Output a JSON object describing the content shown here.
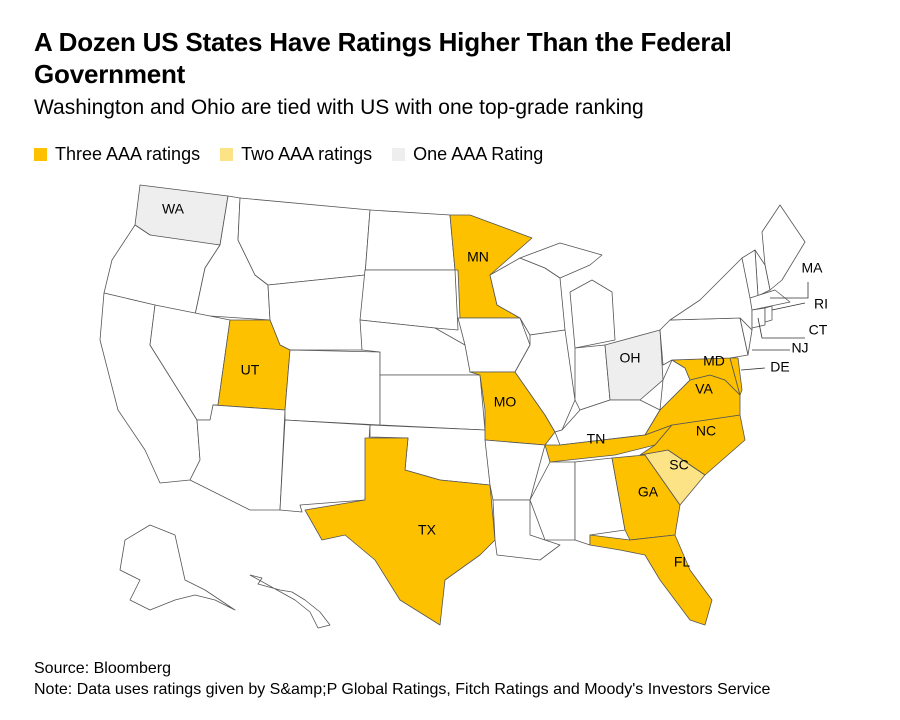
{
  "title": "A Dozen US States Have Ratings Higher Than the Federal Government",
  "subtitle": "Washington and Ohio are tied with US with one top-grade ranking",
  "legend": [
    {
      "label": "Three AAA ratings",
      "color": "#fdc100"
    },
    {
      "label": "Two AAA ratings",
      "color": "#fce486"
    },
    {
      "label": "One AAA Rating",
      "color": "#eeeeee"
    }
  ],
  "colors": {
    "none": "#ffffff",
    "three": "#fdc100",
    "two": "#fce486",
    "one": "#eeeeee"
  },
  "states": [
    {
      "code": "WA",
      "rating": "one"
    },
    {
      "code": "OR",
      "rating": "none"
    },
    {
      "code": "CA",
      "rating": "none"
    },
    {
      "code": "ID",
      "rating": "none"
    },
    {
      "code": "NV",
      "rating": "none"
    },
    {
      "code": "MT",
      "rating": "none"
    },
    {
      "code": "WY",
      "rating": "none"
    },
    {
      "code": "UT",
      "rating": "three"
    },
    {
      "code": "AZ",
      "rating": "none"
    },
    {
      "code": "CO",
      "rating": "none"
    },
    {
      "code": "NM",
      "rating": "none"
    },
    {
      "code": "ND",
      "rating": "none"
    },
    {
      "code": "SD",
      "rating": "none"
    },
    {
      "code": "NE",
      "rating": "none"
    },
    {
      "code": "KS",
      "rating": "none"
    },
    {
      "code": "OK",
      "rating": "none"
    },
    {
      "code": "TX",
      "rating": "three"
    },
    {
      "code": "MN",
      "rating": "three"
    },
    {
      "code": "IA",
      "rating": "none"
    },
    {
      "code": "MO",
      "rating": "three"
    },
    {
      "code": "AR",
      "rating": "none"
    },
    {
      "code": "LA",
      "rating": "none"
    },
    {
      "code": "WI",
      "rating": "none"
    },
    {
      "code": "IL",
      "rating": "none"
    },
    {
      "code": "MI",
      "rating": "none"
    },
    {
      "code": "IN",
      "rating": "none"
    },
    {
      "code": "OH",
      "rating": "one"
    },
    {
      "code": "KY",
      "rating": "none"
    },
    {
      "code": "TN",
      "rating": "three"
    },
    {
      "code": "MS",
      "rating": "none"
    },
    {
      "code": "AL",
      "rating": "none"
    },
    {
      "code": "GA",
      "rating": "three"
    },
    {
      "code": "FL",
      "rating": "three"
    },
    {
      "code": "SC",
      "rating": "two"
    },
    {
      "code": "NC",
      "rating": "three"
    },
    {
      "code": "VA",
      "rating": "three"
    },
    {
      "code": "WV",
      "rating": "none"
    },
    {
      "code": "MD",
      "rating": "three"
    },
    {
      "code": "DE",
      "rating": "three"
    },
    {
      "code": "PA",
      "rating": "none"
    },
    {
      "code": "NY",
      "rating": "none"
    },
    {
      "code": "NJ",
      "rating": "none"
    },
    {
      "code": "ME",
      "rating": "none"
    },
    {
      "code": "NH",
      "rating": "none"
    },
    {
      "code": "VT",
      "rating": "none"
    },
    {
      "code": "MA",
      "rating": "none"
    },
    {
      "code": "CT",
      "rating": "none"
    },
    {
      "code": "RI",
      "rating": "none"
    },
    {
      "code": "AK",
      "rating": "none"
    },
    {
      "code": "HI",
      "rating": "none"
    }
  ],
  "labels": [
    "WA",
    "MN",
    "UT",
    "MO",
    "TX",
    "TN",
    "NC",
    "SC",
    "GA",
    "FL",
    "VA",
    "MD",
    "OH",
    "MA",
    "RI",
    "CT",
    "NJ",
    "DE"
  ],
  "footer": {
    "source": "Source: Bloomberg",
    "note": "Note: Data uses ratings given by S&amp;P Global Ratings, Fitch Ratings and Moody's Investors Service"
  }
}
